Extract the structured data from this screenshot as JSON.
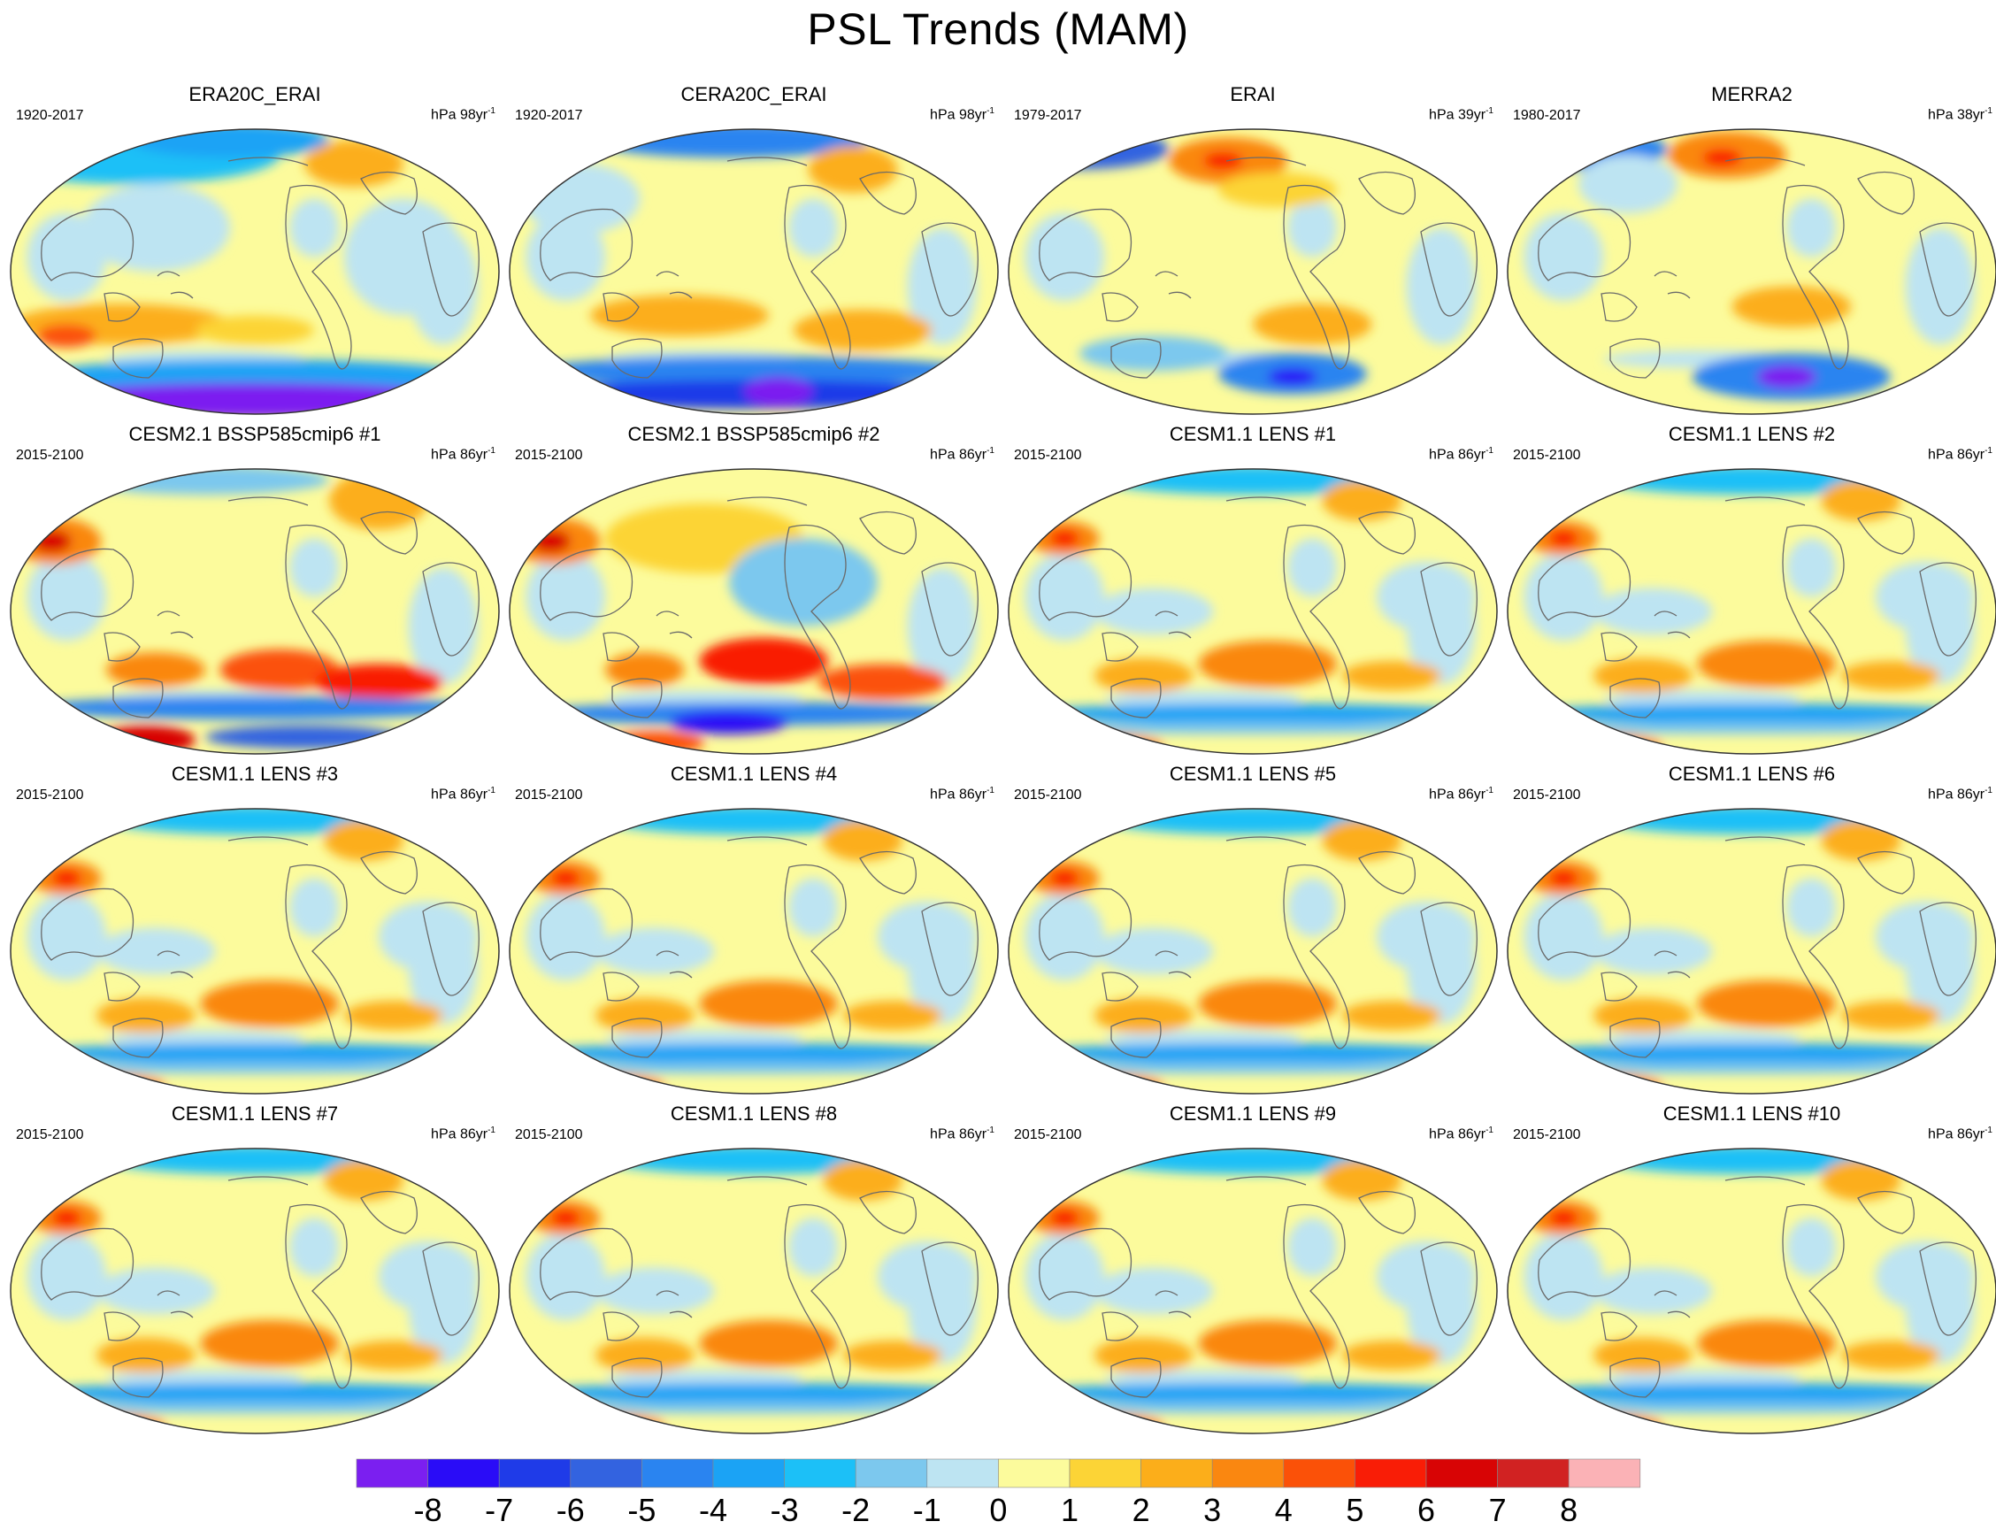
{
  "title": "PSL Trends (MAM)",
  "units": {
    "prefix": "hPa ",
    "suffix": "yr",
    "exp": "-1"
  },
  "panels": [
    {
      "title": "ERA20C_ERAI",
      "period": "1920-2017",
      "years": "98",
      "regime": "reanalysis_long"
    },
    {
      "title": "CERA20C_ERAI",
      "period": "1920-2017",
      "years": "98",
      "regime": "reanalysis_long2"
    },
    {
      "title": "ERAI",
      "period": "1979-2017",
      "years": "39",
      "regime": "reanalysis_short"
    },
    {
      "title": "MERRA2",
      "period": "1980-2017",
      "years": "38",
      "regime": "reanalysis_short2"
    },
    {
      "title": "CESM2.1 BSSP585cmip6 #1",
      "period": "2015-2100",
      "years": "86",
      "regime": "cesm2"
    },
    {
      "title": "CESM2.1 BSSP585cmip6 #2",
      "period": "2015-2100",
      "years": "86",
      "regime": "cesm2b"
    },
    {
      "title": "CESM1.1 LENS #1",
      "period": "2015-2100",
      "years": "86",
      "regime": "lens"
    },
    {
      "title": "CESM1.1 LENS #2",
      "period": "2015-2100",
      "years": "86",
      "regime": "lens"
    },
    {
      "title": "CESM1.1 LENS #3",
      "period": "2015-2100",
      "years": "86",
      "regime": "lens"
    },
    {
      "title": "CESM1.1 LENS #4",
      "period": "2015-2100",
      "years": "86",
      "regime": "lens"
    },
    {
      "title": "CESM1.1 LENS #5",
      "period": "2015-2100",
      "years": "86",
      "regime": "lens"
    },
    {
      "title": "CESM1.1 LENS #6",
      "period": "2015-2100",
      "years": "86",
      "regime": "lens"
    },
    {
      "title": "CESM1.1 LENS #7",
      "period": "2015-2100",
      "years": "86",
      "regime": "lens"
    },
    {
      "title": "CESM1.1 LENS #8",
      "period": "2015-2100",
      "years": "86",
      "regime": "lens"
    },
    {
      "title": "CESM1.1 LENS #9",
      "period": "2015-2100",
      "years": "86",
      "regime": "lens"
    },
    {
      "title": "CESM1.1 LENS #10",
      "period": "2015-2100",
      "years": "86",
      "regime": "lens"
    }
  ],
  "colorbar": {
    "labels": [
      "-8",
      "-7",
      "-6",
      "-5",
      "-4",
      "-3",
      "-2",
      "-1",
      "0",
      "1",
      "2",
      "3",
      "4",
      "5",
      "6",
      "7",
      "8"
    ],
    "colors": [
      "#7b1ff0",
      "#2a0cf7",
      "#1f3be8",
      "#3363e0",
      "#2a84f0",
      "#1ba3f5",
      "#1cc0f7",
      "#7cc8ee",
      "#bde4f2",
      "#fcfb9c",
      "#fcd436",
      "#fcae1a",
      "#fa8710",
      "#fb5108",
      "#f91d06",
      "#d80405",
      "#d12222",
      "#fbb2b6"
    ]
  },
  "chart_data": {
    "type": "map",
    "title": "PSL Trends (MAM)",
    "variable": "sea level pressure trend",
    "colorbar_levels": [
      -8,
      -7,
      -6,
      -5,
      -4,
      -3,
      -2,
      -1,
      0,
      1,
      2,
      3,
      4,
      5,
      6,
      7,
      8
    ],
    "panels": [
      "ERA20C_ERAI",
      "CERA20C_ERAI",
      "ERAI",
      "MERRA2",
      "CESM2.1 BSSP585cmip6 #1",
      "CESM2.1 BSSP585cmip6 #2",
      "CESM1.1 LENS #1",
      "CESM1.1 LENS #2",
      "CESM1.1 LENS #3",
      "CESM1.1 LENS #4",
      "CESM1.1 LENS #5",
      "CESM1.1 LENS #6",
      "CESM1.1 LENS #7",
      "CESM1.1 LENS #8",
      "CESM1.1 LENS #9",
      "CESM1.1 LENS #10"
    ]
  }
}
